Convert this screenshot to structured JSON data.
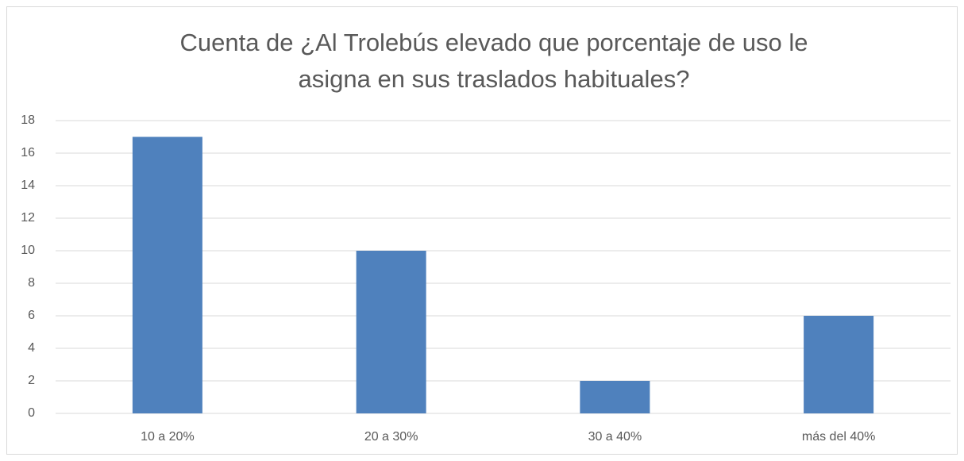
{
  "chart_data": {
    "type": "bar",
    "title": [
      "Cuenta de ¿Al Trolebús elevado que porcentaje de uso le",
      "asigna en sus traslados habituales?"
    ],
    "categories": [
      "10 a 20%",
      "20 a 30%",
      "30 a 40%",
      "más del 40%"
    ],
    "values": [
      17,
      10,
      2,
      6
    ],
    "color": "#4f81bd",
    "ylim": [
      0,
      18
    ],
    "yticks": [
      0,
      2,
      4,
      6,
      8,
      10,
      12,
      14,
      16,
      18
    ],
    "grid": true
  }
}
